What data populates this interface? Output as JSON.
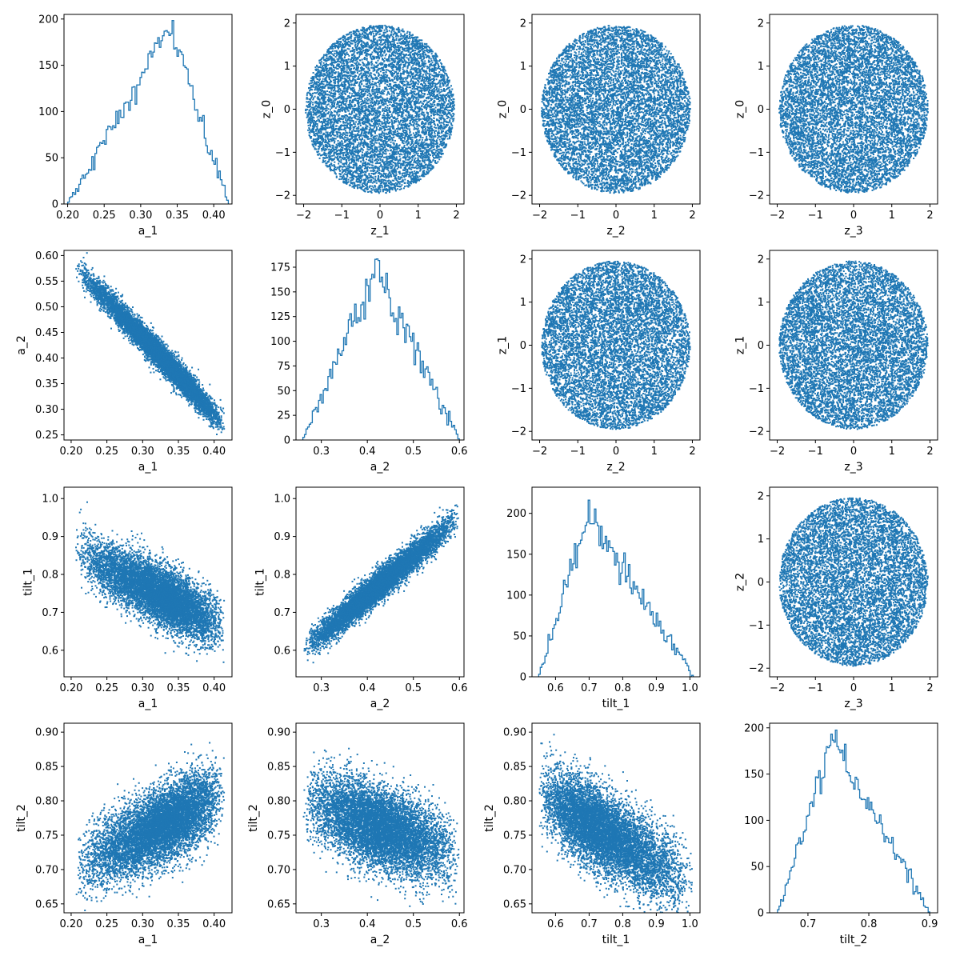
{
  "figure": {
    "type": "corner-plot",
    "color": "#1f77b4",
    "scatter_points_per_panel": 8000
  },
  "chart_data": [
    {
      "id": "p00",
      "type": "histogram",
      "xlabel": "a_1",
      "ylabel": "",
      "xlim": [
        0.195,
        0.425
      ],
      "ylim": [
        0,
        205
      ],
      "xticks": [
        0.2,
        0.25,
        0.3,
        0.35,
        0.4
      ],
      "xtick_labels": [
        "0.20",
        "0.25",
        "0.30",
        "0.35",
        "0.40"
      ],
      "yticks": [
        0,
        50,
        100,
        150,
        200
      ],
      "ytick_labels": [
        "0",
        "50",
        "100",
        "150",
        "200"
      ],
      "bins": [
        0.2,
        0.42
      ],
      "profile": {
        "type": "tri",
        "a": 0.2,
        "m": 0.34,
        "b": 0.42,
        "peak": 190
      }
    },
    {
      "id": "p01",
      "type": "scatter",
      "xlabel": "z_1",
      "ylabel": "z_0",
      "xlim": [
        -2.2,
        2.2
      ],
      "ylim": [
        -2.2,
        2.2
      ],
      "xticks": [
        -2,
        -1,
        0,
        1,
        2
      ],
      "xtick_labels": [
        "−2",
        "−1",
        "0",
        "1",
        "2"
      ],
      "yticks": [
        -2,
        -1,
        0,
        1,
        2
      ],
      "ytick_labels": [
        "−2",
        "−1",
        "0",
        "1",
        "2"
      ],
      "distribution": {
        "type": "disk",
        "center": [
          0,
          0
        ],
        "radius": 1.95
      }
    },
    {
      "id": "p02",
      "type": "scatter",
      "xlabel": "z_2",
      "ylabel": "z_0",
      "xlim": [
        -2.2,
        2.2
      ],
      "ylim": [
        -2.2,
        2.2
      ],
      "xticks": [
        -2,
        -1,
        0,
        1,
        2
      ],
      "xtick_labels": [
        "−2",
        "−1",
        "0",
        "1",
        "2"
      ],
      "yticks": [
        -2,
        -1,
        0,
        1,
        2
      ],
      "ytick_labels": [
        "−2",
        "−1",
        "0",
        "1",
        "2"
      ],
      "distribution": {
        "type": "disk",
        "center": [
          0,
          0
        ],
        "radius": 1.95
      }
    },
    {
      "id": "p03",
      "type": "scatter",
      "xlabel": "z_3",
      "ylabel": "z_0",
      "xlim": [
        -2.2,
        2.2
      ],
      "ylim": [
        -2.2,
        2.2
      ],
      "xticks": [
        -2,
        -1,
        0,
        1,
        2
      ],
      "xtick_labels": [
        "−2",
        "−1",
        "0",
        "1",
        "2"
      ],
      "yticks": [
        -2,
        -1,
        0,
        1,
        2
      ],
      "ytick_labels": [
        "−2",
        "−1",
        "0",
        "1",
        "2"
      ],
      "distribution": {
        "type": "disk",
        "center": [
          0,
          0
        ],
        "radius": 1.95
      }
    },
    {
      "id": "p10",
      "type": "scatter",
      "xlabel": "a_1",
      "ylabel": "a_2",
      "xlim": [
        0.19,
        0.425
      ],
      "ylim": [
        0.24,
        0.61
      ],
      "xticks": [
        0.2,
        0.25,
        0.3,
        0.35,
        0.4
      ],
      "xtick_labels": [
        "0.20",
        "0.25",
        "0.30",
        "0.35",
        "0.40"
      ],
      "yticks": [
        0.25,
        0.3,
        0.35,
        0.4,
        0.45,
        0.5,
        0.55,
        0.6
      ],
      "ytick_labels": [
        "0.25",
        "0.30",
        "0.35",
        "0.40",
        "0.45",
        "0.50",
        "0.55",
        "0.60"
      ],
      "distribution": {
        "type": "band",
        "x_profile": {
          "type": "tri",
          "a": 0.205,
          "m": 0.34,
          "b": 0.415
        },
        "line": [
          [
            0.205,
            0.58
          ],
          [
            0.415,
            0.27
          ]
        ],
        "spread": 0.03
      }
    },
    {
      "id": "p11",
      "type": "histogram",
      "xlabel": "a_2",
      "ylabel": "",
      "xlim": [
        0.245,
        0.61
      ],
      "ylim": [
        0,
        192
      ],
      "xticks": [
        0.3,
        0.4,
        0.5,
        0.6
      ],
      "xtick_labels": [
        "0.3",
        "0.4",
        "0.5",
        "0.6"
      ],
      "yticks": [
        0,
        25,
        50,
        75,
        100,
        125,
        150,
        175
      ],
      "ytick_labels": [
        "0",
        "25",
        "50",
        "75",
        "100",
        "125",
        "150",
        "175"
      ],
      "bins": [
        0.26,
        0.6
      ],
      "profile": {
        "type": "tri",
        "a": 0.26,
        "m": 0.42,
        "b": 0.6,
        "peak": 175
      }
    },
    {
      "id": "p12",
      "type": "scatter",
      "xlabel": "z_2",
      "ylabel": "z_1",
      "xlim": [
        -2.2,
        2.2
      ],
      "ylim": [
        -2.2,
        2.2
      ],
      "xticks": [
        -2,
        -1,
        0,
        1,
        2
      ],
      "xtick_labels": [
        "−2",
        "−1",
        "0",
        "1",
        "2"
      ],
      "yticks": [
        -2,
        -1,
        0,
        1,
        2
      ],
      "ytick_labels": [
        "−2",
        "−1",
        "0",
        "1",
        "2"
      ],
      "distribution": {
        "type": "disk",
        "center": [
          0,
          0
        ],
        "radius": 1.95
      }
    },
    {
      "id": "p13",
      "type": "scatter",
      "xlabel": "z_3",
      "ylabel": "z_1",
      "xlim": [
        -2.2,
        2.2
      ],
      "ylim": [
        -2.2,
        2.2
      ],
      "xticks": [
        -2,
        -1,
        0,
        1,
        2
      ],
      "xtick_labels": [
        "−2",
        "−1",
        "0",
        "1",
        "2"
      ],
      "yticks": [
        -2,
        -1,
        0,
        1,
        2
      ],
      "ytick_labels": [
        "−2",
        "−1",
        "0",
        "1",
        "2"
      ],
      "distribution": {
        "type": "disk",
        "center": [
          0,
          0
        ],
        "radius": 1.95
      }
    },
    {
      "id": "p20",
      "type": "scatter",
      "xlabel": "a_1",
      "ylabel": "tilt_1",
      "xlim": [
        0.19,
        0.425
      ],
      "ylim": [
        0.53,
        1.03
      ],
      "xticks": [
        0.2,
        0.25,
        0.3,
        0.35,
        0.4
      ],
      "xtick_labels": [
        "0.20",
        "0.25",
        "0.30",
        "0.35",
        "0.40"
      ],
      "yticks": [
        0.6,
        0.7,
        0.8,
        0.9,
        1.0
      ],
      "ytick_labels": [
        "0.6",
        "0.7",
        "0.8",
        "0.9",
        "1.0"
      ],
      "distribution": {
        "type": "band",
        "x_profile": {
          "type": "tri",
          "a": 0.205,
          "m": 0.34,
          "b": 0.415
        },
        "line": [
          [
            0.205,
            0.86
          ],
          [
            0.415,
            0.66
          ]
        ],
        "spread": 0.085
      }
    },
    {
      "id": "p21",
      "type": "scatter",
      "xlabel": "a_2",
      "ylabel": "tilt_1",
      "xlim": [
        0.245,
        0.61
      ],
      "ylim": [
        0.53,
        1.03
      ],
      "xticks": [
        0.3,
        0.4,
        0.5,
        0.6
      ],
      "xtick_labels": [
        "0.3",
        "0.4",
        "0.5",
        "0.6"
      ],
      "yticks": [
        0.6,
        0.7,
        0.8,
        0.9,
        1.0
      ],
      "ytick_labels": [
        "0.6",
        "0.7",
        "0.8",
        "0.9",
        "1.0"
      ],
      "distribution": {
        "type": "band",
        "x_profile": {
          "type": "tri",
          "a": 0.26,
          "m": 0.42,
          "b": 0.6
        },
        "line": [
          [
            0.26,
            0.6
          ],
          [
            0.6,
            0.95
          ]
        ],
        "spread": 0.045
      }
    },
    {
      "id": "p22",
      "type": "histogram",
      "xlabel": "tilt_1",
      "ylabel": "",
      "xlim": [
        0.53,
        1.03
      ],
      "ylim": [
        0,
        232
      ],
      "xticks": [
        0.6,
        0.7,
        0.8,
        0.9,
        1.0
      ],
      "xtick_labels": [
        "0.6",
        "0.7",
        "0.8",
        "0.9",
        "1.0"
      ],
      "yticks": [
        0,
        50,
        100,
        150,
        200
      ],
      "ytick_labels": [
        "0",
        "50",
        "100",
        "150",
        "200"
      ],
      "bins": [
        0.55,
        1.01
      ],
      "profile": {
        "type": "tri",
        "a": 0.55,
        "m": 0.7,
        "b": 1.01,
        "peak": 200
      }
    },
    {
      "id": "p23",
      "type": "scatter",
      "xlabel": "z_3",
      "ylabel": "z_2",
      "xlim": [
        -2.2,
        2.2
      ],
      "ylim": [
        -2.2,
        2.2
      ],
      "xticks": [
        -2,
        -1,
        0,
        1,
        2
      ],
      "xtick_labels": [
        "−2",
        "−1",
        "0",
        "1",
        "2"
      ],
      "yticks": [
        -2,
        -1,
        0,
        1,
        2
      ],
      "ytick_labels": [
        "−2",
        "−1",
        "0",
        "1",
        "2"
      ],
      "distribution": {
        "type": "disk",
        "center": [
          0,
          0
        ],
        "radius": 1.95
      }
    },
    {
      "id": "p30",
      "type": "scatter",
      "xlabel": "a_1",
      "ylabel": "tilt_2",
      "xlim": [
        0.19,
        0.425
      ],
      "ylim": [
        0.637,
        0.913
      ],
      "xticks": [
        0.2,
        0.25,
        0.3,
        0.35,
        0.4
      ],
      "xtick_labels": [
        "0.20",
        "0.25",
        "0.30",
        "0.35",
        "0.40"
      ],
      "yticks": [
        0.65,
        0.7,
        0.75,
        0.8,
        0.85,
        0.9
      ],
      "ytick_labels": [
        "0.65",
        "0.70",
        "0.75",
        "0.80",
        "0.85",
        "0.90"
      ],
      "distribution": {
        "type": "band",
        "x_profile": {
          "type": "tri",
          "a": 0.205,
          "m": 0.34,
          "b": 0.415
        },
        "line": [
          [
            0.205,
            0.7
          ],
          [
            0.415,
            0.81
          ]
        ],
        "spread": 0.06
      }
    },
    {
      "id": "p31",
      "type": "scatter",
      "xlabel": "a_2",
      "ylabel": "tilt_2",
      "xlim": [
        0.245,
        0.61
      ],
      "ylim": [
        0.637,
        0.913
      ],
      "xticks": [
        0.3,
        0.4,
        0.5,
        0.6
      ],
      "xtick_labels": [
        "0.3",
        "0.4",
        "0.5",
        "0.6"
      ],
      "yticks": [
        0.65,
        0.7,
        0.75,
        0.8,
        0.85,
        0.9
      ],
      "ytick_labels": [
        "0.65",
        "0.70",
        "0.75",
        "0.80",
        "0.85",
        "0.90"
      ],
      "distribution": {
        "type": "band",
        "x_profile": {
          "type": "tri",
          "a": 0.26,
          "m": 0.42,
          "b": 0.6
        },
        "line": [
          [
            0.26,
            0.8
          ],
          [
            0.6,
            0.72
          ]
        ],
        "spread": 0.065
      }
    },
    {
      "id": "p32",
      "type": "scatter",
      "xlabel": "tilt_1",
      "ylabel": "tilt_2",
      "xlim": [
        0.53,
        1.03
      ],
      "ylim": [
        0.637,
        0.913
      ],
      "xticks": [
        0.6,
        0.7,
        0.8,
        0.9,
        1.0
      ],
      "xtick_labels": [
        "0.6",
        "0.7",
        "0.8",
        "0.9",
        "1.0"
      ],
      "yticks": [
        0.65,
        0.7,
        0.75,
        0.8,
        0.85,
        0.9
      ],
      "ytick_labels": [
        "0.65",
        "0.70",
        "0.75",
        "0.80",
        "0.85",
        "0.90"
      ],
      "distribution": {
        "type": "band",
        "x_profile": {
          "type": "tri",
          "a": 0.55,
          "m": 0.7,
          "b": 1.01
        },
        "line": [
          [
            0.55,
            0.81
          ],
          [
            1.0,
            0.68
          ]
        ],
        "spread": 0.065
      }
    },
    {
      "id": "p33",
      "type": "histogram",
      "xlabel": "tilt_2",
      "ylabel": "",
      "xlim": [
        0.637,
        0.913
      ],
      "ylim": [
        0,
        205
      ],
      "xticks": [
        0.7,
        0.8,
        0.9
      ],
      "xtick_labels": [
        "0.7",
        "0.8",
        "0.9"
      ],
      "yticks": [
        0,
        50,
        100,
        150,
        200
      ],
      "ytick_labels": [
        "0",
        "50",
        "100",
        "150",
        "200"
      ],
      "bins": [
        0.65,
        0.9
      ],
      "profile": {
        "type": "tri",
        "a": 0.65,
        "m": 0.74,
        "b": 0.9,
        "peak": 185
      }
    }
  ]
}
